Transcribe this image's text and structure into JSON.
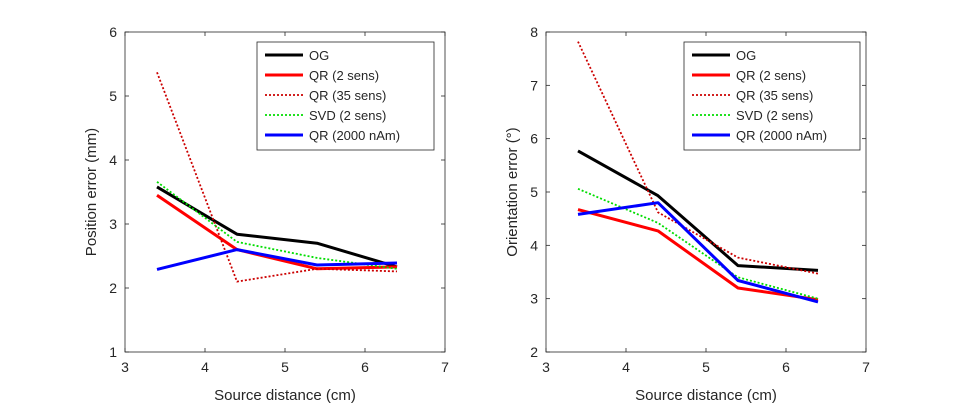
{
  "chart_data": [
    {
      "type": "line",
      "title": "",
      "xlabel": "Source distance (cm)",
      "ylabel": "Position error (mm)",
      "xlim": [
        3,
        7
      ],
      "ylim": [
        1,
        6
      ],
      "xticks": [
        3,
        4,
        5,
        6,
        7
      ],
      "yticks": [
        1,
        2,
        3,
        4,
        5,
        6
      ],
      "grid": false,
      "legend_position": "top-right",
      "series": [
        {
          "name": "OG",
          "color": "#000000",
          "style": "solid",
          "x": [
            3.4,
            4.4,
            5.4,
            6.4
          ],
          "y": [
            3.58,
            2.84,
            2.7,
            2.33
          ]
        },
        {
          "name": "QR (2 sens)",
          "color": "#ff0000",
          "style": "solid",
          "x": [
            3.4,
            4.4,
            5.4,
            6.4
          ],
          "y": [
            3.45,
            2.6,
            2.3,
            2.33
          ]
        },
        {
          "name": "QR (35 sens)",
          "color": "#cc0000",
          "style": "dotted",
          "x": [
            3.4,
            4.4,
            5.4,
            6.4
          ],
          "y": [
            5.37,
            2.1,
            2.3,
            2.26
          ]
        },
        {
          "name": "SVD (2 sens)",
          "color": "#00dd00",
          "style": "dotted",
          "x": [
            3.4,
            4.4,
            5.4,
            6.4
          ],
          "y": [
            3.66,
            2.72,
            2.47,
            2.3
          ]
        },
        {
          "name": "QR (2000 nAm)",
          "color": "#0000ff",
          "style": "solid",
          "x": [
            3.4,
            4.4,
            5.4,
            6.4
          ],
          "y": [
            2.29,
            2.6,
            2.36,
            2.39
          ]
        }
      ]
    },
    {
      "type": "line",
      "title": "",
      "xlabel": "Source distance (cm)",
      "ylabel": "Orientation error (°)",
      "xlim": [
        3,
        7
      ],
      "ylim": [
        2,
        8
      ],
      "xticks": [
        3,
        4,
        5,
        6,
        7
      ],
      "yticks": [
        2,
        3,
        4,
        5,
        6,
        7,
        8
      ],
      "grid": false,
      "legend_position": "top-right",
      "series": [
        {
          "name": "OG",
          "color": "#000000",
          "style": "solid",
          "x": [
            3.4,
            4.4,
            5.4,
            6.4
          ],
          "y": [
            5.77,
            4.93,
            3.62,
            3.53
          ]
        },
        {
          "name": "QR (2 sens)",
          "color": "#ff0000",
          "style": "solid",
          "x": [
            3.4,
            4.4,
            5.4,
            6.4
          ],
          "y": [
            4.67,
            4.27,
            3.2,
            2.98
          ]
        },
        {
          "name": "QR (35 sens)",
          "color": "#cc0000",
          "style": "dotted",
          "x": [
            3.4,
            4.4,
            5.4,
            6.4
          ],
          "y": [
            7.82,
            4.62,
            3.77,
            3.47
          ]
        },
        {
          "name": "SVD (2 sens)",
          "color": "#00dd00",
          "style": "dotted",
          "x": [
            3.4,
            4.4,
            5.4,
            6.4
          ],
          "y": [
            5.06,
            4.42,
            3.4,
            3.0
          ]
        },
        {
          "name": "QR (2000 nAm)",
          "color": "#0000ff",
          "style": "solid",
          "x": [
            3.4,
            4.4,
            5.4,
            6.4
          ],
          "y": [
            4.58,
            4.8,
            3.34,
            2.94
          ]
        }
      ]
    }
  ]
}
